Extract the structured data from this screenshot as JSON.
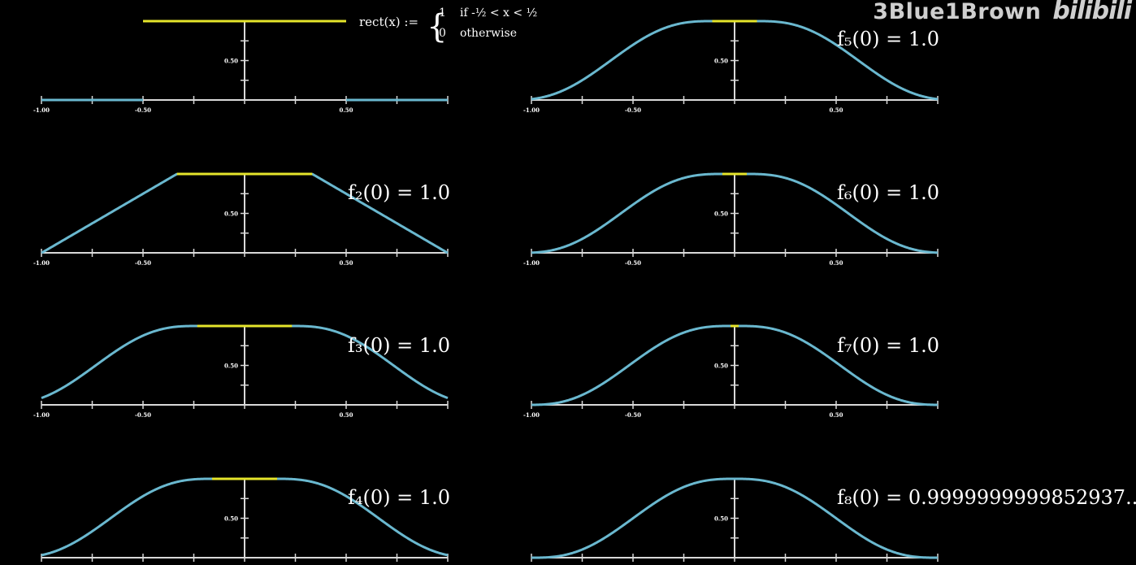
{
  "watermark": {
    "channel": "3Blue1Brown",
    "site": "bilibili"
  },
  "definition": {
    "lhs": "rect(x) :=",
    "case1_value": "1",
    "case1_condition": "if -½ < x < ½",
    "case2_value": "0",
    "case2_condition": "otherwise"
  },
  "colors": {
    "curve": "#6ab8cf",
    "plateau": "#e5e52b",
    "axis": "#d9d9d9",
    "background": "#000000"
  },
  "chart_data": [
    {
      "type": "line",
      "name": "rect",
      "label": "",
      "x_ticks": [
        "-1.00",
        "-0.50",
        "0.50"
      ],
      "y_ticks": [
        "0.50"
      ],
      "xlim": [
        -1,
        1
      ],
      "ylim": [
        0,
        1
      ],
      "transition_half_width": 0.0,
      "plateau_half_width": 0.5
    },
    {
      "type": "line",
      "name": "f2",
      "label": "f₂(0) = 1.0",
      "x_ticks": [
        "-1.00",
        "-0.50",
        "0.50"
      ],
      "y_ticks": [
        "0.50"
      ],
      "xlim": [
        -1,
        1
      ],
      "ylim": [
        0,
        1
      ],
      "shape": "linear",
      "transition_half_width": 0.333,
      "plateau_half_width": 0.333
    },
    {
      "type": "line",
      "name": "f3",
      "label": "f₃(0) = 1.0",
      "x_ticks": [
        "-1.00",
        "-0.50",
        "0.50"
      ],
      "y_ticks": [
        "0.50"
      ],
      "xlim": [
        -1,
        1
      ],
      "ylim": [
        0,
        1
      ],
      "shape": "smooth",
      "transition_half_width": 0.5,
      "plateau_half_width": 0.233
    },
    {
      "type": "line",
      "name": "f4",
      "label": "f₄(0) = 1.0",
      "x_ticks": [
        "-1.00",
        "-0.50",
        "0.50"
      ],
      "y_ticks": [
        "0.50"
      ],
      "xlim": [
        -1,
        1
      ],
      "ylim": [
        0,
        1
      ],
      "shape": "smooth",
      "transition_half_width": 0.5,
      "plateau_half_width": 0.16
    },
    {
      "type": "line",
      "name": "f5",
      "label": "f₅(0) = 1.0",
      "x_ticks": [
        "-1.00",
        "-0.50",
        "0.50"
      ],
      "y_ticks": [
        "0.50"
      ],
      "xlim": [
        -1,
        1
      ],
      "ylim": [
        0,
        1
      ],
      "shape": "smooth",
      "transition_half_width": 0.5,
      "plateau_half_width": 0.11
    },
    {
      "type": "line",
      "name": "f6",
      "label": "f₆(0) = 1.0",
      "x_ticks": [
        "-1.00",
        "-0.50",
        "0.50"
      ],
      "y_ticks": [
        "0.50"
      ],
      "xlim": [
        -1,
        1
      ],
      "ylim": [
        0,
        1
      ],
      "shape": "smooth",
      "transition_half_width": 0.5,
      "plateau_half_width": 0.06
    },
    {
      "type": "line",
      "name": "f7",
      "label": "f₇(0) = 1.0",
      "x_ticks": [
        "-1.00",
        "-0.50",
        "0.50"
      ],
      "y_ticks": [
        "0.50"
      ],
      "xlim": [
        -1,
        1
      ],
      "ylim": [
        0,
        1
      ],
      "shape": "smooth",
      "transition_half_width": 0.5,
      "plateau_half_width": 0.02
    },
    {
      "type": "line",
      "name": "f8",
      "label": "f₈(0) = 0.9999999999852937...",
      "x_ticks": [
        "-1.00",
        "-0.50",
        "0.50"
      ],
      "y_ticks": [
        "0.50"
      ],
      "xlim": [
        -1,
        1
      ],
      "ylim": [
        0,
        1
      ],
      "shape": "smooth",
      "transition_half_width": 0.5,
      "plateau_half_width": 0.0
    }
  ]
}
